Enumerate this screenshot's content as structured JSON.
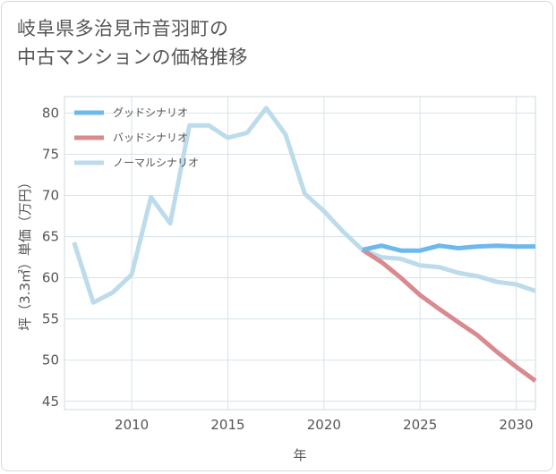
{
  "title_lines": [
    "岐阜県多治見市音羽町の",
    "中古マンションの価格推移"
  ],
  "chart_data": {
    "type": "line",
    "title": "岐阜県多治見市音羽町の中古マンションの価格推移",
    "xlabel": "年",
    "ylabel": "坪（3.3㎡）単価（万円）",
    "xlim": [
      2006.5,
      2031
    ],
    "ylim": [
      44,
      82
    ],
    "x_ticks": [
      2010,
      2015,
      2020,
      2025,
      2030
    ],
    "y_ticks": [
      45,
      50,
      55,
      60,
      65,
      70,
      75,
      80
    ],
    "grid": true,
    "legend_position": "top-left",
    "series": [
      {
        "name": "グッドシナリオ",
        "color": "#6db9ec",
        "x": [
          2022,
          2023,
          2024,
          2025,
          2026,
          2027,
          2028,
          2029,
          2030,
          2031
        ],
        "values": [
          63.4,
          63.9,
          63.3,
          63.3,
          63.9,
          63.6,
          63.8,
          63.9,
          63.8,
          63.8
        ]
      },
      {
        "name": "バッドシナリオ",
        "color": "#d98a8e",
        "x": [
          2022,
          2023,
          2024,
          2025,
          2026,
          2027,
          2028,
          2029,
          2030,
          2031
        ],
        "values": [
          63.4,
          61.9,
          60.0,
          57.9,
          56.2,
          54.6,
          53.0,
          51.0,
          49.2,
          47.5
        ]
      },
      {
        "name": "ノーマルシナリオ",
        "color": "#bcdceb",
        "x": [
          2007,
          2008,
          2009,
          2010,
          2011,
          2012,
          2013,
          2014,
          2015,
          2016,
          2017,
          2018,
          2019,
          2020,
          2021,
          2022,
          2023,
          2024,
          2025,
          2026,
          2027,
          2028,
          2029,
          2030,
          2031
        ],
        "values": [
          64.3,
          57.0,
          58.2,
          60.4,
          69.8,
          66.6,
          78.5,
          78.5,
          77.0,
          77.6,
          80.6,
          77.4,
          70.2,
          68.1,
          65.6,
          63.4,
          62.5,
          62.3,
          61.5,
          61.3,
          60.6,
          60.2,
          59.5,
          59.2,
          58.4
        ]
      }
    ]
  }
}
